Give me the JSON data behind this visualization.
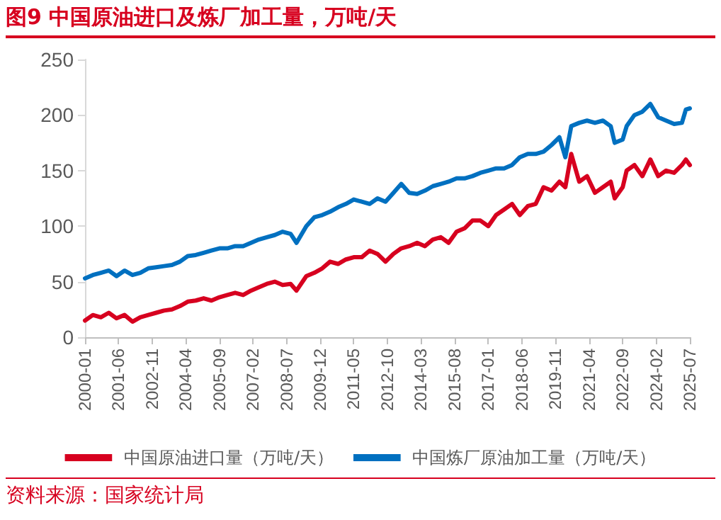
{
  "chart_data": {
    "type": "line",
    "title": "图9  中国原油进口及炼厂加工量，万吨/天",
    "annotations": [
      "资料来源：国家统计局"
    ],
    "x": [
      "2000-01",
      "2000-05",
      "2000-09",
      "2001-01",
      "2001-05",
      "2001-09",
      "2002-01",
      "2002-05",
      "2002-09",
      "2003-01",
      "2003-05",
      "2003-09",
      "2004-01",
      "2004-05",
      "2004-09",
      "2005-01",
      "2005-05",
      "2005-09",
      "2006-01",
      "2006-05",
      "2006-09",
      "2007-01",
      "2007-05",
      "2007-09",
      "2008-01",
      "2008-05",
      "2008-09",
      "2008-12",
      "2009-05",
      "2009-09",
      "2010-01",
      "2010-05",
      "2010-09",
      "2011-01",
      "2011-05",
      "2011-09",
      "2012-01",
      "2012-05",
      "2012-09",
      "2013-01",
      "2013-05",
      "2013-09",
      "2014-01",
      "2014-05",
      "2014-09",
      "2015-01",
      "2015-05",
      "2015-09",
      "2016-01",
      "2016-05",
      "2016-09",
      "2017-01",
      "2017-05",
      "2017-09",
      "2018-01",
      "2018-05",
      "2018-09",
      "2019-01",
      "2019-05",
      "2019-09",
      "2020-01",
      "2020-04",
      "2020-07",
      "2020-11",
      "2021-03",
      "2021-07",
      "2021-11",
      "2022-03",
      "2022-05",
      "2022-09",
      "2022-11",
      "2023-03",
      "2023-07",
      "2023-11",
      "2024-03",
      "2024-07",
      "2024-11",
      "2025-03",
      "2025-05",
      "2025-07"
    ],
    "series": [
      {
        "name": "中国原油进口量（万吨/天）",
        "color": "#d7001f",
        "values": [
          15,
          20,
          18,
          22,
          17,
          20,
          14,
          18,
          20,
          22,
          24,
          25,
          28,
          32,
          33,
          35,
          33,
          36,
          38,
          40,
          38,
          42,
          45,
          48,
          50,
          47,
          48,
          42,
          55,
          58,
          62,
          68,
          66,
          70,
          72,
          72,
          78,
          75,
          68,
          75,
          80,
          82,
          85,
          82,
          88,
          90,
          85,
          95,
          98,
          105,
          105,
          100,
          110,
          115,
          120,
          110,
          118,
          120,
          135,
          132,
          140,
          135,
          165,
          140,
          145,
          130,
          135,
          140,
          125,
          135,
          150,
          155,
          145,
          160,
          145,
          150,
          148,
          155,
          160,
          155
        ]
      },
      {
        "name": "中国炼厂原油加工量（万吨/天）",
        "color": "#0070c0",
        "values": [
          53,
          56,
          58,
          60,
          55,
          60,
          56,
          58,
          62,
          63,
          64,
          65,
          68,
          73,
          74,
          76,
          78,
          80,
          80,
          82,
          82,
          85,
          88,
          90,
          92,
          95,
          93,
          85,
          100,
          108,
          110,
          113,
          117,
          120,
          124,
          122,
          120,
          125,
          122,
          130,
          138,
          130,
          129,
          132,
          136,
          138,
          140,
          143,
          143,
          145,
          148,
          150,
          152,
          152,
          155,
          162,
          165,
          165,
          167,
          173,
          180,
          162,
          190,
          193,
          195,
          193,
          195,
          190,
          175,
          178,
          190,
          200,
          203,
          210,
          198,
          195,
          192,
          193,
          205,
          206
        ]
      }
    ],
    "xlim": [
      "2000-01",
      "2025-07"
    ],
    "xticks": [
      "2000-01",
      "2001-06",
      "2002-11",
      "2004-04",
      "2005-09",
      "2007-02",
      "2008-07",
      "2009-12",
      "2011-05",
      "2012-10",
      "2014-03",
      "2015-08",
      "2017-01",
      "2018-06",
      "2019-11",
      "2021-04",
      "2022-09",
      "2024-02",
      "2025-07"
    ],
    "ylim": [
      0,
      250
    ],
    "yticks": [
      0,
      50,
      100,
      150,
      200,
      250
    ],
    "grid": false,
    "legend": "bottom",
    "marker": "none",
    "line_style": "solid"
  }
}
